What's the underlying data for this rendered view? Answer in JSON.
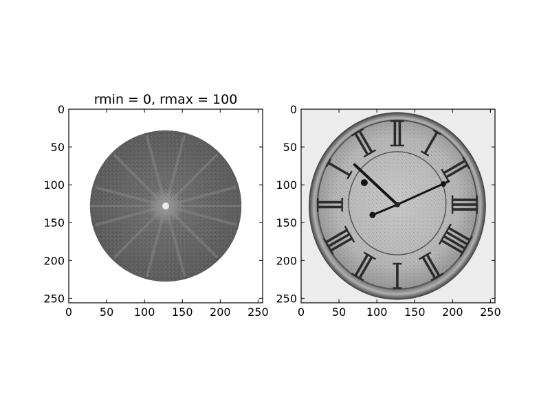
{
  "chart_data": [
    {
      "type": "image",
      "title": "rmin = 0, rmax = 100",
      "xlim": [
        0,
        256
      ],
      "ylim": [
        256,
        0
      ],
      "xticks": [
        0,
        50,
        100,
        150,
        200,
        250
      ],
      "yticks": [
        0,
        50,
        100,
        150,
        200,
        250
      ],
      "image": {
        "kind": "fft-magnitude-spectrum-masked",
        "mask_center": [
          128,
          128
        ],
        "mask_radius": 100,
        "rays": 12
      }
    },
    {
      "type": "image",
      "title": "",
      "xlim": [
        0,
        256
      ],
      "ylim": [
        256,
        0
      ],
      "xticks": [
        0,
        50,
        100,
        150,
        200,
        250
      ],
      "yticks": [
        0,
        50,
        100,
        150,
        200,
        250
      ],
      "image": {
        "kind": "grayscale-clock-reconstruction",
        "numerals": [
          "XII",
          "I",
          "II",
          "III",
          "IIII",
          "V",
          "VI",
          "VII",
          "VIII",
          "IX",
          "X",
          "XI"
        ]
      }
    }
  ]
}
